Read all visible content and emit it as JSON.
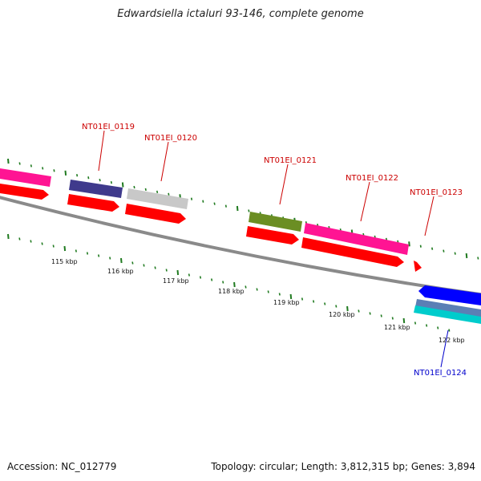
{
  "title": "Edwardsiella ictaluri 93-146, complete genome",
  "accession": "Accession: NC_012779",
  "summary": "Topology: circular; Length: 3,812,315 bp; Genes: 3,894",
  "colors": {
    "backbone": "#8a8a8a",
    "tick": "#1f7a1f",
    "gene_label": "#cc0000",
    "gene_label_minus": "#0000cc",
    "cds_red": "#ff0000",
    "pink": "#ff1493",
    "navy": "#3f3a8c",
    "silver": "#c8c8c8",
    "olive": "#6b8e23",
    "blue": "#0000ff",
    "steel": "#5b7fb5",
    "cyan": "#00cccc"
  },
  "scale_labels": [
    "115 kbp",
    "116 kbp",
    "117 kbp",
    "118 kbp",
    "119 kbp",
    "120 kbp",
    "121 kbp",
    "122 kbp"
  ],
  "gene_labels": [
    {
      "text": "NT01EI_0119",
      "strand": "plus"
    },
    {
      "text": "NT01EI_0120",
      "strand": "plus"
    },
    {
      "text": "NT01EI_0121",
      "strand": "plus"
    },
    {
      "text": "NT01EI_0122",
      "strand": "plus"
    },
    {
      "text": "NT01EI_0123",
      "strand": "plus"
    },
    {
      "text": "NT01EI_0124",
      "strand": "minus"
    }
  ]
}
